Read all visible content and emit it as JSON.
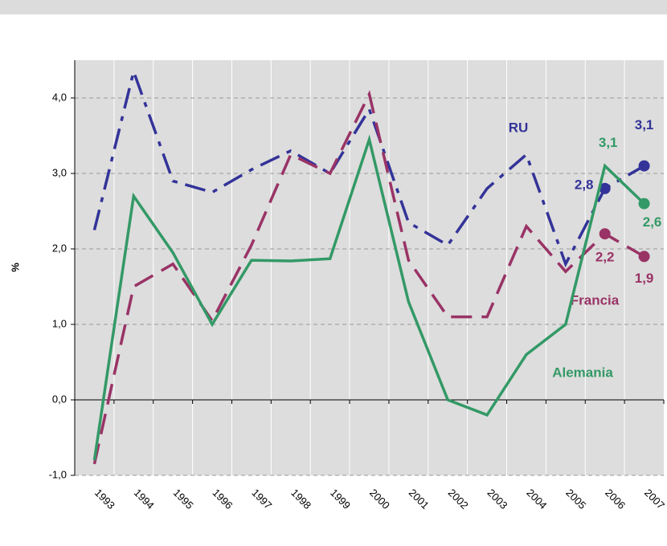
{
  "chart_data": {
    "type": "line",
    "ylabel": "%",
    "categories": [
      "1993",
      "1994",
      "1995",
      "1996",
      "1997",
      "1998",
      "1999",
      "2000",
      "2001",
      "2002",
      "2003",
      "2004",
      "2005",
      "2006",
      "2007"
    ],
    "ylim": [
      -1,
      4.5
    ],
    "yticks": [
      {
        "value": -1,
        "label": "-1,0"
      },
      {
        "value": 0,
        "label": "0,0"
      },
      {
        "value": 1,
        "label": "1,0"
      },
      {
        "value": 2,
        "label": "2,0"
      },
      {
        "value": 3,
        "label": "3,0"
      },
      {
        "value": 4,
        "label": "4,0"
      }
    ],
    "grid": true,
    "series": [
      {
        "name": "RU",
        "color": "#333399",
        "dash": "dashdot",
        "values": [
          2.25,
          4.35,
          2.9,
          2.75,
          3.05,
          3.3,
          3.0,
          3.85,
          2.35,
          2.05,
          2.8,
          3.25,
          1.8,
          2.8,
          3.1
        ],
        "value_labels": [
          null,
          null,
          null,
          null,
          null,
          null,
          null,
          null,
          null,
          null,
          null,
          null,
          null,
          "2,8",
          "3,1"
        ],
        "markers": [
          13,
          14
        ]
      },
      {
        "name": "Francia",
        "color": "#993366",
        "dash": "dash",
        "values": [
          -0.85,
          1.5,
          1.8,
          1.05,
          2.05,
          3.25,
          3.0,
          4.05,
          1.85,
          1.1,
          1.1,
          2.3,
          1.7,
          2.2,
          1.9
        ],
        "value_labels": [
          null,
          null,
          null,
          null,
          null,
          null,
          null,
          null,
          null,
          null,
          null,
          null,
          null,
          "2,2",
          "1,9"
        ],
        "markers": [
          13,
          14
        ]
      },
      {
        "name": "Alemania",
        "color": "#339966",
        "dash": "solid",
        "values": [
          -0.8,
          2.7,
          1.95,
          1.0,
          1.85,
          1.84,
          1.87,
          3.45,
          1.3,
          0.0,
          -0.2,
          0.6,
          1.0,
          3.1,
          2.6
        ],
        "value_labels": [
          null,
          null,
          null,
          null,
          null,
          null,
          null,
          null,
          null,
          null,
          null,
          null,
          null,
          "3,1",
          "2,6"
        ],
        "markers": [
          14
        ]
      }
    ]
  }
}
